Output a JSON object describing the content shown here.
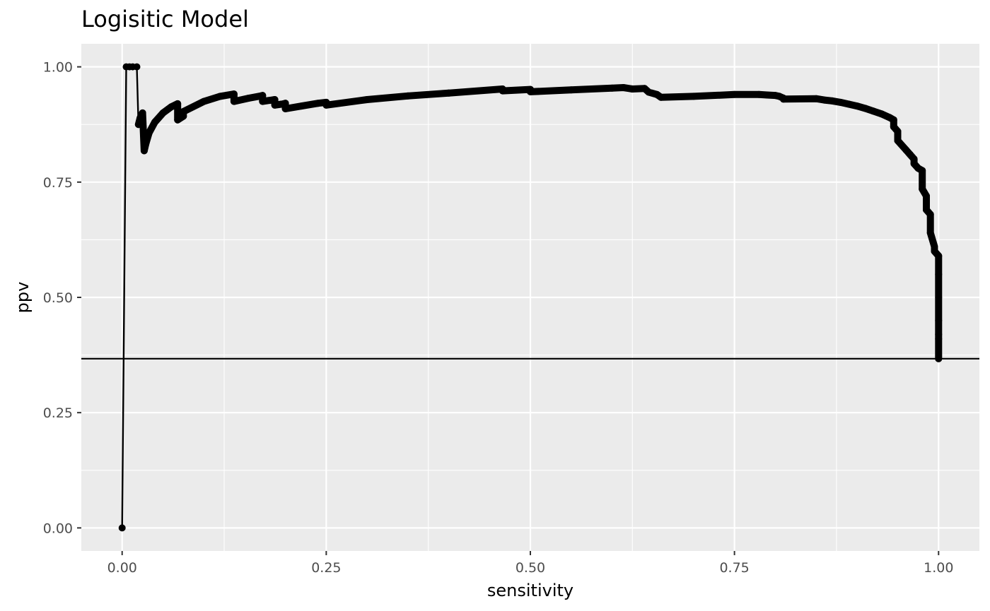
{
  "chart_data": {
    "type": "line",
    "title": "Logisitic Model",
    "xlabel": "sensitivity",
    "ylabel": "ppv",
    "xlim": [
      -0.05,
      1.05
    ],
    "ylim": [
      -0.05,
      1.05
    ],
    "xticks": [
      0.0,
      0.25,
      0.5,
      0.75,
      1.0
    ],
    "xtick_labels": [
      "0.00",
      "0.25",
      "0.50",
      "0.75",
      "1.00"
    ],
    "yticks": [
      0.0,
      0.25,
      0.5,
      0.75,
      1.0
    ],
    "ytick_labels": [
      "0.00",
      "0.25",
      "0.50",
      "0.75",
      "1.00"
    ],
    "grid": true,
    "reference_line": {
      "type": "horizontal",
      "y": 0.367
    },
    "series": [
      {
        "x": [
          0.0,
          0.005,
          0.009,
          0.013,
          0.018,
          0.02,
          0.022,
          0.025,
          0.027,
          0.029,
          0.033,
          0.04,
          0.05,
          0.06,
          0.068,
          0.068,
          0.075,
          0.075,
          0.1,
          0.12,
          0.137,
          0.137,
          0.155,
          0.17,
          0.172,
          0.172,
          0.187,
          0.187,
          0.195,
          0.198,
          0.2,
          0.2,
          0.22,
          0.24,
          0.25,
          0.25,
          0.3,
          0.35,
          0.4,
          0.466,
          0.466,
          0.5,
          0.5,
          0.55,
          0.6,
          0.614,
          0.625,
          0.64,
          0.645,
          0.655,
          0.66,
          0.7,
          0.75,
          0.78,
          0.79,
          0.8,
          0.805,
          0.81,
          0.81,
          0.85,
          0.86,
          0.87,
          0.88,
          0.89,
          0.9,
          0.91,
          0.92,
          0.93,
          0.94,
          0.945,
          0.945,
          0.95,
          0.95,
          0.96,
          0.965,
          0.97,
          0.97,
          0.975,
          0.98,
          0.98,
          0.985,
          0.985,
          0.99,
          0.99,
          0.995,
          0.995,
          1.0,
          1.0,
          1.0,
          1.0,
          1.0,
          1.0,
          1.0
        ],
        "y": [
          0.0,
          1.0,
          1.0,
          1.0,
          1.0,
          0.875,
          0.889,
          0.9,
          0.818,
          0.833,
          0.857,
          0.88,
          0.9,
          0.913,
          0.92,
          0.885,
          0.893,
          0.903,
          0.925,
          0.936,
          0.941,
          0.925,
          0.932,
          0.937,
          0.938,
          0.925,
          0.929,
          0.917,
          0.919,
          0.92,
          0.921,
          0.909,
          0.915,
          0.921,
          0.923,
          0.917,
          0.929,
          0.937,
          0.943,
          0.952,
          0.948,
          0.951,
          0.946,
          0.95,
          0.954,
          0.955,
          0.952,
          0.953,
          0.945,
          0.94,
          0.934,
          0.936,
          0.94,
          0.94,
          0.939,
          0.938,
          0.936,
          0.932,
          0.93,
          0.931,
          0.928,
          0.926,
          0.923,
          0.919,
          0.915,
          0.91,
          0.904,
          0.898,
          0.89,
          0.885,
          0.87,
          0.86,
          0.84,
          0.82,
          0.81,
          0.8,
          0.79,
          0.78,
          0.775,
          0.735,
          0.72,
          0.69,
          0.68,
          0.64,
          0.61,
          0.6,
          0.59,
          0.55,
          0.5,
          0.45,
          0.42,
          0.41,
          0.367
        ]
      }
    ]
  }
}
